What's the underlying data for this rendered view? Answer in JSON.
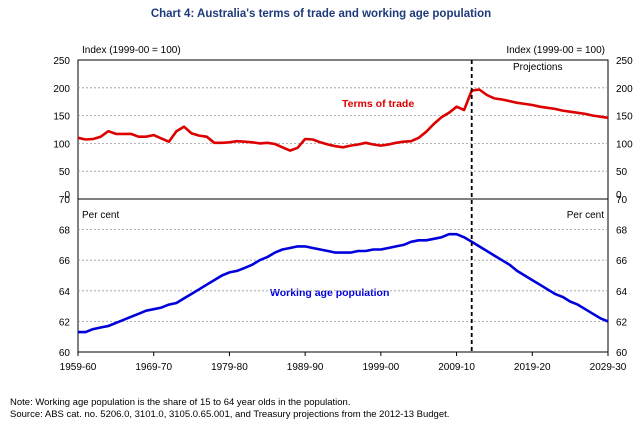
{
  "chart_data": {
    "type": "line",
    "title": "Chart 4: Australia's terms of trade and working age population",
    "x_ticks": [
      "1959-60",
      "1969-70",
      "1979-80",
      "1989-90",
      "1999-00",
      "2009-10",
      "2019-20",
      "2029-30"
    ],
    "x_range": [
      1959,
      2029
    ],
    "projection_start": 2011,
    "projection_label": "Projections",
    "panels": [
      {
        "name": "terms-of-trade",
        "left_unit": "Index (1999-00 = 100)",
        "right_unit": "Index (1999-00 = 100)",
        "ylim": [
          0,
          250
        ],
        "y_ticks": [
          0,
          50,
          100,
          150,
          200,
          250
        ],
        "series": [
          {
            "name": "Terms of trade",
            "color": "#dd0000",
            "x": [
              1959,
              1960,
              1961,
              1962,
              1963,
              1964,
              1965,
              1966,
              1967,
              1968,
              1969,
              1970,
              1971,
              1972,
              1973,
              1974,
              1975,
              1976,
              1977,
              1978,
              1979,
              1980,
              1981,
              1982,
              1983,
              1984,
              1985,
              1986,
              1987,
              1988,
              1989,
              1990,
              1991,
              1992,
              1993,
              1994,
              1995,
              1996,
              1997,
              1998,
              1999,
              2000,
              2001,
              2002,
              2003,
              2004,
              2005,
              2006,
              2007,
              2008,
              2009,
              2010,
              2011,
              2012,
              2013,
              2014,
              2015,
              2016,
              2017,
              2018,
              2019,
              2020,
              2021,
              2022,
              2023,
              2024,
              2025,
              2026,
              2027,
              2028,
              2029
            ],
            "values": [
              110,
              107,
              108,
              112,
              122,
              117,
              117,
              117,
              112,
              112,
              115,
              109,
              103,
              122,
              130,
              118,
              114,
              112,
              101,
              101,
              102,
              104,
              103,
              102,
              100,
              101,
              99,
              93,
              87,
              92,
              108,
              107,
              102,
              98,
              95,
              93,
              96,
              98,
              101,
              98,
              96,
              98,
              101,
              103,
              104,
              110,
              121,
              135,
              147,
              155,
              166,
              160,
              195,
              197,
              187,
              181,
              179,
              176,
              173,
              171,
              169,
              166,
              164,
              162,
              159,
              157,
              155,
              153,
              150,
              148,
              146
            ]
          }
        ]
      },
      {
        "name": "working-age-population",
        "left_unit": "Per cent",
        "right_unit": "Per cent",
        "ylim": [
          60,
          70
        ],
        "y_ticks": [
          60,
          62,
          64,
          66,
          68,
          70
        ],
        "series": [
          {
            "name": "Working age population",
            "color": "#0000dd",
            "x": [
              1959,
              1960,
              1961,
              1962,
              1963,
              1964,
              1965,
              1966,
              1967,
              1968,
              1969,
              1970,
              1971,
              1972,
              1973,
              1974,
              1975,
              1976,
              1977,
              1978,
              1979,
              1980,
              1981,
              1982,
              1983,
              1984,
              1985,
              1986,
              1987,
              1988,
              1989,
              1990,
              1991,
              1992,
              1993,
              1994,
              1995,
              1996,
              1997,
              1998,
              1999,
              2000,
              2001,
              2002,
              2003,
              2004,
              2005,
              2006,
              2007,
              2008,
              2009,
              2010,
              2011,
              2012,
              2013,
              2014,
              2015,
              2016,
              2017,
              2018,
              2019,
              2020,
              2021,
              2022,
              2023,
              2024,
              2025,
              2026,
              2027,
              2028,
              2029
            ],
            "values": [
              61.3,
              61.3,
              61.5,
              61.6,
              61.7,
              61.9,
              62.1,
              62.3,
              62.5,
              62.7,
              62.8,
              62.9,
              63.1,
              63.2,
              63.5,
              63.8,
              64.1,
              64.4,
              64.7,
              65.0,
              65.2,
              65.3,
              65.5,
              65.7,
              66.0,
              66.2,
              66.5,
              66.7,
              66.8,
              66.9,
              66.9,
              66.8,
              66.7,
              66.6,
              66.5,
              66.5,
              66.5,
              66.6,
              66.6,
              66.7,
              66.7,
              66.8,
              66.9,
              67.0,
              67.2,
              67.3,
              67.3,
              67.4,
              67.5,
              67.7,
              67.7,
              67.5,
              67.2,
              66.9,
              66.6,
              66.3,
              66.0,
              65.7,
              65.3,
              65.0,
              64.7,
              64.4,
              64.1,
              63.8,
              63.6,
              63.3,
              63.1,
              62.8,
              62.5,
              62.2,
              62.0
            ]
          }
        ]
      }
    ],
    "annotations": {
      "terms_label": "Terms of trade",
      "population_label": "Working age population"
    }
  },
  "notes": {
    "note": "Note: Working age population is the share of 15 to 64 year olds in the population.",
    "source": "Source: ABS cat. no. 5206.0, 3101.0, 3105.0.65.001, and Treasury projections from the 2012-13 Budget."
  }
}
